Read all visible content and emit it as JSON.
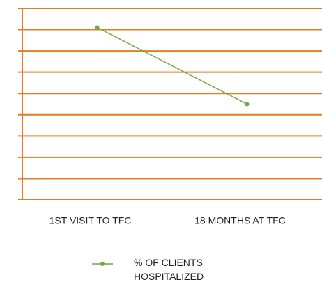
{
  "chart_data": {
    "type": "line",
    "categories": [
      "1ST VISIT TO TFC",
      "18 MONTHS AT TFC"
    ],
    "series": [
      {
        "name": "% OF CLIENTS HOSPITALIZED",
        "color": "#6aaa45",
        "values": [
          8.1,
          4.5
        ]
      }
    ],
    "ylim": [
      0,
      9
    ],
    "yticks": [
      0,
      1,
      2,
      3,
      4,
      5,
      6,
      7,
      8,
      9
    ],
    "grid": true,
    "grid_color": "#e37c22",
    "legend": "bottom"
  }
}
